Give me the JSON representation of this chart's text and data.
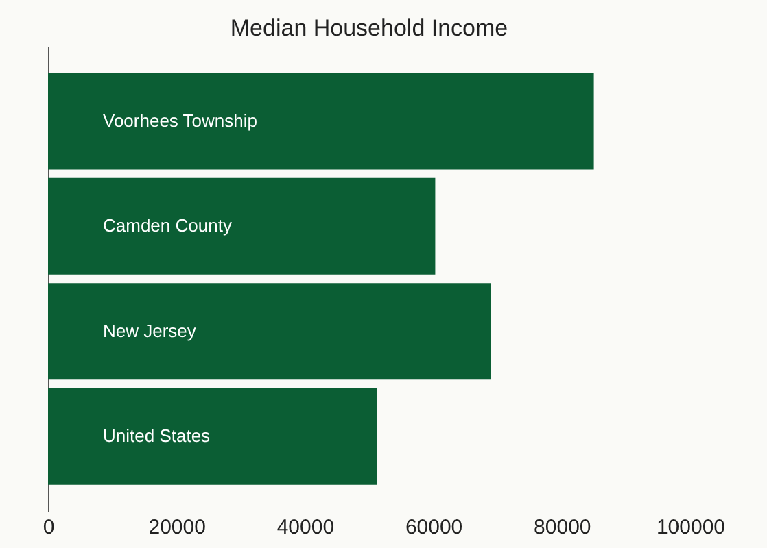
{
  "chart_data": {
    "type": "bar",
    "orientation": "horizontal",
    "title": "Median Household Income",
    "categories": [
      "Voorhees Township",
      "Camden County",
      "New Jersey",
      "United States"
    ],
    "values": [
      85000,
      60300,
      69000,
      51200
    ],
    "color": "#0b5e34",
    "xlim": [
      0,
      100000
    ],
    "xticks": [
      0,
      20000,
      40000,
      60000,
      80000,
      100000
    ],
    "grid": false
  }
}
